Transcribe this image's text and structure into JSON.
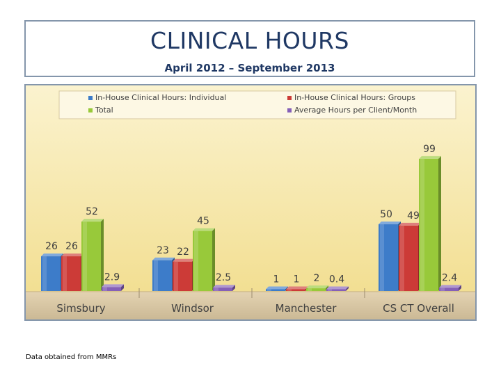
{
  "header": {
    "title": "CLINICAL HOURS",
    "subtitle": "April 2012 – September 2013"
  },
  "footnote": "Data obtained from MMRs",
  "chart_data": {
    "type": "bar",
    "title": "CLINICAL HOURS",
    "subtitle": "April 2012 – September 2013",
    "categories": [
      "Simsbury",
      "Windsor",
      "Manchester",
      "CS CT Overall"
    ],
    "series": [
      {
        "name": "In-House Clinical Hours: Individual",
        "color": "#3d7cc9",
        "values": [
          26,
          23,
          1,
          50
        ],
        "labels": [
          "26",
          "23",
          "1",
          "50"
        ]
      },
      {
        "name": "In-House Clinical Hours: Groups",
        "color": "#cc3b37",
        "values": [
          26,
          22,
          1,
          49
        ],
        "labels": [
          "26",
          "22",
          "1",
          "49"
        ]
      },
      {
        "name": "Total",
        "color": "#98c93a",
        "values": [
          52,
          45,
          2,
          99
        ],
        "labels": [
          "52",
          "45",
          "2",
          "99"
        ]
      },
      {
        "name": "Average Hours per Client/Month",
        "color": "#8560b8",
        "values": [
          2.9,
          2.5,
          0.4,
          2.4
        ],
        "labels": [
          "2.9",
          "2.5",
          "0.4",
          "2.4"
        ]
      }
    ],
    "ylim": [
      0,
      100
    ],
    "legend_position": "top",
    "grid": false,
    "background": "#f7e6a4",
    "floor_color": "#dac9a8"
  }
}
